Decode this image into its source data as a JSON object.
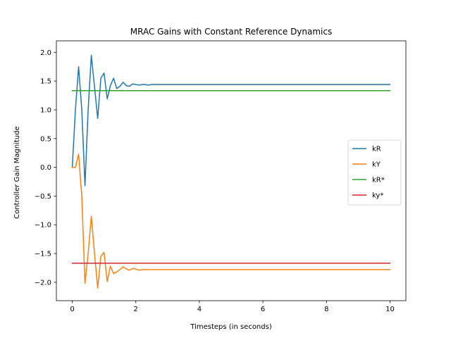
{
  "chart_data": {
    "type": "line",
    "title": "MRAC Gains with Constant Reference Dynamics",
    "xlabel": "Timesteps (in seconds)",
    "ylabel": "Controller Gain Magnitude",
    "xlim": [
      -0.5,
      10.5
    ],
    "ylim": [
      -2.32,
      2.2
    ],
    "xticks": [
      0,
      2,
      4,
      6,
      8,
      10
    ],
    "yticks": [
      2.0,
      1.5,
      1.0,
      0.5,
      0.0,
      -0.5,
      -1.0,
      -1.5,
      -2.0
    ],
    "xtick_labels": [
      "0",
      "2",
      "4",
      "6",
      "8",
      "10"
    ],
    "ytick_labels": [
      "2.0",
      "1.5",
      "1.0",
      "0.5",
      "0.0",
      "−0.5",
      "−1.0",
      "−1.5",
      "−2.0"
    ],
    "grid": false,
    "legend_position": "center-right",
    "series": [
      {
        "name": "kR",
        "color": "#1f77b4",
        "x": [
          0,
          0.1,
          0.2,
          0.3,
          0.4,
          0.5,
          0.6,
          0.7,
          0.8,
          0.9,
          1.0,
          1.1,
          1.2,
          1.3,
          1.4,
          1.5,
          1.6,
          1.7,
          1.8,
          1.9,
          2.0,
          2.1,
          2.2,
          2.3,
          2.4,
          2.5,
          2.6,
          10
        ],
        "y": [
          0.0,
          1.0,
          1.75,
          1.0,
          -0.32,
          1.0,
          1.95,
          1.4,
          0.85,
          1.55,
          1.64,
          1.19,
          1.42,
          1.55,
          1.37,
          1.41,
          1.48,
          1.42,
          1.41,
          1.45,
          1.44,
          1.43,
          1.44,
          1.44,
          1.43,
          1.44,
          1.44,
          1.44
        ]
      },
      {
        "name": "kY",
        "color": "#ff7f0e",
        "x": [
          0,
          0.1,
          0.2,
          0.3,
          0.4,
          0.5,
          0.6,
          0.7,
          0.8,
          0.9,
          1.0,
          1.1,
          1.2,
          1.3,
          1.4,
          1.5,
          1.6,
          1.7,
          1.8,
          1.9,
          2.0,
          2.1,
          2.2,
          2.3,
          2.4,
          2.5,
          10
        ],
        "y": [
          0.0,
          0.0,
          0.23,
          -0.5,
          -2.02,
          -1.5,
          -0.85,
          -1.5,
          -2.1,
          -1.55,
          -1.48,
          -1.99,
          -1.72,
          -1.85,
          -1.82,
          -1.78,
          -1.73,
          -1.77,
          -1.79,
          -1.76,
          -1.77,
          -1.79,
          -1.78,
          -1.78,
          -1.78,
          -1.78,
          -1.78
        ]
      },
      {
        "name": "kR*",
        "color": "#2ca02c",
        "x": [
          0,
          10
        ],
        "y": [
          1.333,
          1.333
        ]
      },
      {
        "name": "ky*",
        "color": "#d62728",
        "x": [
          0,
          10
        ],
        "y": [
          -1.667,
          -1.667
        ]
      }
    ]
  }
}
